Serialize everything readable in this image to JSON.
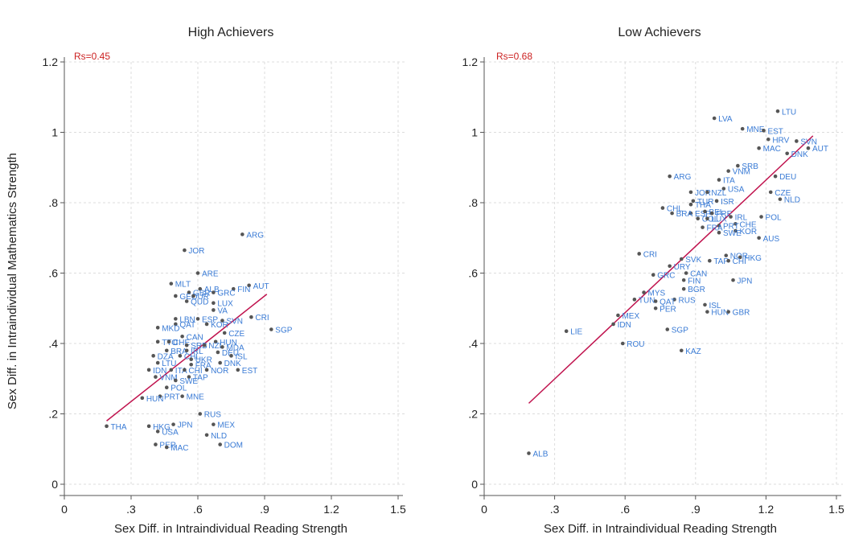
{
  "chart_data": [
    {
      "type": "scatter",
      "title": "High Achievers",
      "xlabel": "Sex Diff. in Intraindividual Reading Strength",
      "ylabel": "Sex Diff. in Intraindividual Mathematics Strength",
      "annotation": "Rs=0.45",
      "xlim": [
        0,
        1.5
      ],
      "ylim": [
        0,
        1.2
      ],
      "xticks": [
        0,
        0.3,
        0.6,
        0.9,
        1.2,
        1.5
      ],
      "xtick_labels": [
        "0",
        ".3",
        ".6",
        ".9",
        "1.2",
        "1.5"
      ],
      "yticks": [
        0,
        0.2,
        0.4,
        0.6,
        0.8,
        1.0,
        1.2
      ],
      "ytick_labels": [
        "0",
        ".2",
        ".4",
        ".6",
        ".8",
        "1",
        "1.2"
      ],
      "grid": true,
      "fit_line": {
        "x": [
          0.19,
          0.91
        ],
        "y": [
          0.18,
          0.54
        ]
      },
      "points": [
        {
          "label": "ARG",
          "x": 0.8,
          "y": 0.71
        },
        {
          "label": "JOR",
          "x": 0.54,
          "y": 0.665
        },
        {
          "label": "ARE",
          "x": 0.6,
          "y": 0.6
        },
        {
          "label": "MLT",
          "x": 0.48,
          "y": 0.57
        },
        {
          "label": "AUT",
          "x": 0.83,
          "y": 0.565
        },
        {
          "label": "ALB",
          "x": 0.61,
          "y": 0.555
        },
        {
          "label": "FIN",
          "x": 0.76,
          "y": 0.555
        },
        {
          "label": "GBR",
          "x": 0.56,
          "y": 0.545
        },
        {
          "label": "GRC",
          "x": 0.67,
          "y": 0.545
        },
        {
          "label": "GEO",
          "x": 0.5,
          "y": 0.535
        },
        {
          "label": "UR",
          "x": 0.58,
          "y": 0.535
        },
        {
          "label": "QUD",
          "x": 0.55,
          "y": 0.52
        },
        {
          "label": "LUX",
          "x": 0.67,
          "y": 0.515
        },
        {
          "label": "VA",
          "x": 0.67,
          "y": 0.495
        },
        {
          "label": "LBN",
          "x": 0.5,
          "y": 0.47
        },
        {
          "label": "ESP",
          "x": 0.6,
          "y": 0.47
        },
        {
          "label": "CRI",
          "x": 0.84,
          "y": 0.475
        },
        {
          "label": "SVN",
          "x": 0.71,
          "y": 0.465
        },
        {
          "label": "QAT",
          "x": 0.5,
          "y": 0.455
        },
        {
          "label": "KOR",
          "x": 0.64,
          "y": 0.455
        },
        {
          "label": "MKD",
          "x": 0.42,
          "y": 0.445
        },
        {
          "label": "SGP",
          "x": 0.93,
          "y": 0.44
        },
        {
          "label": "CZE",
          "x": 0.72,
          "y": 0.43
        },
        {
          "label": "CAN",
          "x": 0.53,
          "y": 0.42
        },
        {
          "label": "TTO",
          "x": 0.42,
          "y": 0.405
        },
        {
          "label": "CHE",
          "x": 0.47,
          "y": 0.405
        },
        {
          "label": "HUN",
          "x": 0.68,
          "y": 0.405
        },
        {
          "label": "SRB",
          "x": 0.55,
          "y": 0.395
        },
        {
          "label": "NZL",
          "x": 0.63,
          "y": 0.395
        },
        {
          "label": "MDA",
          "x": 0.71,
          "y": 0.39
        },
        {
          "label": "BRA",
          "x": 0.46,
          "y": 0.38
        },
        {
          "label": "IRL",
          "x": 0.55,
          "y": 0.38
        },
        {
          "label": "DEU",
          "x": 0.69,
          "y": 0.375
        },
        {
          "label": "DZA",
          "x": 0.4,
          "y": 0.365
        },
        {
          "label": "CHL",
          "x": 0.52,
          "y": 0.365
        },
        {
          "label": "ISL",
          "x": 0.75,
          "y": 0.365
        },
        {
          "label": "UKR",
          "x": 0.57,
          "y": 0.355
        },
        {
          "label": "FRA",
          "x": 0.57,
          "y": 0.34
        },
        {
          "label": "LTU",
          "x": 0.42,
          "y": 0.345
        },
        {
          "label": "DNK",
          "x": 0.7,
          "y": 0.345
        },
        {
          "label": "IDN",
          "x": 0.38,
          "y": 0.325
        },
        {
          "label": "ITA",
          "x": 0.48,
          "y": 0.325
        },
        {
          "label": "CHI",
          "x": 0.54,
          "y": 0.325
        },
        {
          "label": "NOR",
          "x": 0.64,
          "y": 0.325
        },
        {
          "label": "EST",
          "x": 0.78,
          "y": 0.325
        },
        {
          "label": "VNM",
          "x": 0.41,
          "y": 0.305
        },
        {
          "label": "TAP",
          "x": 0.56,
          "y": 0.305
        },
        {
          "label": "SWE",
          "x": 0.5,
          "y": 0.295
        },
        {
          "label": "POL",
          "x": 0.46,
          "y": 0.275
        },
        {
          "label": "PRT",
          "x": 0.43,
          "y": 0.25
        },
        {
          "label": "MNE",
          "x": 0.53,
          "y": 0.25
        },
        {
          "label": "HUN",
          "x": 0.35,
          "y": 0.245
        },
        {
          "label": "RUS",
          "x": 0.61,
          "y": 0.2
        },
        {
          "label": "THA",
          "x": 0.19,
          "y": 0.165
        },
        {
          "label": "HKG",
          "x": 0.38,
          "y": 0.165
        },
        {
          "label": "JPN",
          "x": 0.49,
          "y": 0.17
        },
        {
          "label": "MEX",
          "x": 0.67,
          "y": 0.17
        },
        {
          "label": "USA",
          "x": 0.42,
          "y": 0.15
        },
        {
          "label": "NLD",
          "x": 0.64,
          "y": 0.14
        },
        {
          "label": "PER",
          "x": 0.41,
          "y": 0.113
        },
        {
          "label": "DOM",
          "x": 0.7,
          "y": 0.113
        },
        {
          "label": "MAC",
          "x": 0.46,
          "y": 0.105
        }
      ]
    },
    {
      "type": "scatter",
      "title": "Low Achievers",
      "xlabel": "Sex Diff. in Intraindividual Reading Strength",
      "ylabel": "",
      "annotation": "Rs=0.68",
      "xlim": [
        0,
        1.5
      ],
      "ylim": [
        0,
        1.2
      ],
      "xticks": [
        0,
        0.3,
        0.6,
        0.9,
        1.2,
        1.5
      ],
      "xtick_labels": [
        "0",
        ".3",
        ".6",
        ".9",
        "1.2",
        "1.5"
      ],
      "yticks": [
        0,
        0.2,
        0.4,
        0.6,
        0.8,
        1.0,
        1.2
      ],
      "ytick_labels": [
        "0",
        ".2",
        ".4",
        ".6",
        ".8",
        "1",
        "1.2"
      ],
      "grid": true,
      "fit_line": {
        "x": [
          0.19,
          1.4
        ],
        "y": [
          0.23,
          0.99
        ]
      },
      "points": [
        {
          "label": "LTU",
          "x": 1.25,
          "y": 1.06
        },
        {
          "label": "LVA",
          "x": 0.98,
          "y": 1.04
        },
        {
          "label": "MNE",
          "x": 1.1,
          "y": 1.01
        },
        {
          "label": "EST",
          "x": 1.19,
          "y": 1.005
        },
        {
          "label": "HRV",
          "x": 1.21,
          "y": 0.98
        },
        {
          "label": "SVN",
          "x": 1.33,
          "y": 0.975
        },
        {
          "label": "MAC",
          "x": 1.17,
          "y": 0.955
        },
        {
          "label": "AUT",
          "x": 1.38,
          "y": 0.955
        },
        {
          "label": "DNK",
          "x": 1.29,
          "y": 0.94
        },
        {
          "label": "SRB",
          "x": 1.08,
          "y": 0.905
        },
        {
          "label": "VNM",
          "x": 1.04,
          "y": 0.89
        },
        {
          "label": "ARG",
          "x": 0.79,
          "y": 0.875
        },
        {
          "label": "DEU",
          "x": 1.24,
          "y": 0.875
        },
        {
          "label": "ITA",
          "x": 1.0,
          "y": 0.865
        },
        {
          "label": "USA",
          "x": 1.02,
          "y": 0.84
        },
        {
          "label": "JOR",
          "x": 0.88,
          "y": 0.83
        },
        {
          "label": "NZL",
          "x": 0.95,
          "y": 0.83
        },
        {
          "label": "CZE",
          "x": 1.22,
          "y": 0.83
        },
        {
          "label": "TUR",
          "x": 0.89,
          "y": 0.805
        },
        {
          "label": "ISR",
          "x": 0.99,
          "y": 0.805
        },
        {
          "label": "NLD",
          "x": 1.26,
          "y": 0.81
        },
        {
          "label": "THA",
          "x": 0.88,
          "y": 0.795
        },
        {
          "label": "CHL",
          "x": 0.76,
          "y": 0.785
        },
        {
          "label": "ESP",
          "x": 0.88,
          "y": 0.77
        },
        {
          "label": "BEL",
          "x": 0.94,
          "y": 0.775
        },
        {
          "label": "FRE",
          "x": 0.97,
          "y": 0.77
        },
        {
          "label": "IRL",
          "x": 1.05,
          "y": 0.76
        },
        {
          "label": "POL",
          "x": 1.18,
          "y": 0.76
        },
        {
          "label": "BRA",
          "x": 0.8,
          "y": 0.77
        },
        {
          "label": "COL",
          "x": 0.91,
          "y": 0.755
        },
        {
          "label": "LUX",
          "x": 0.95,
          "y": 0.755
        },
        {
          "label": "CHE",
          "x": 1.07,
          "y": 0.74
        },
        {
          "label": "PRT",
          "x": 1.0,
          "y": 0.735
        },
        {
          "label": "KOR",
          "x": 1.07,
          "y": 0.72
        },
        {
          "label": "SWE",
          "x": 1.0,
          "y": 0.715
        },
        {
          "label": "FRA",
          "x": 0.93,
          "y": 0.73
        },
        {
          "label": "AUS",
          "x": 1.17,
          "y": 0.7
        },
        {
          "label": "NOR",
          "x": 1.03,
          "y": 0.65
        },
        {
          "label": "HKG",
          "x": 1.09,
          "y": 0.645
        },
        {
          "label": "CRI",
          "x": 0.66,
          "y": 0.655
        },
        {
          "label": "SVK",
          "x": 0.84,
          "y": 0.64
        },
        {
          "label": "TAP",
          "x": 0.96,
          "y": 0.635
        },
        {
          "label": "CHI",
          "x": 1.04,
          "y": 0.635
        },
        {
          "label": "URY",
          "x": 0.79,
          "y": 0.62
        },
        {
          "label": "CAN",
          "x": 0.86,
          "y": 0.6
        },
        {
          "label": "GRC",
          "x": 0.72,
          "y": 0.595
        },
        {
          "label": "FIN",
          "x": 0.85,
          "y": 0.58
        },
        {
          "label": "JPN",
          "x": 1.06,
          "y": 0.58
        },
        {
          "label": "BGR",
          "x": 0.85,
          "y": 0.555
        },
        {
          "label": "MYS",
          "x": 0.68,
          "y": 0.545
        },
        {
          "label": "TUN",
          "x": 0.64,
          "y": 0.525
        },
        {
          "label": "RUS",
          "x": 0.81,
          "y": 0.525
        },
        {
          "label": "QAT",
          "x": 0.73,
          "y": 0.52
        },
        {
          "label": "ISL",
          "x": 0.94,
          "y": 0.51
        },
        {
          "label": "PER",
          "x": 0.73,
          "y": 0.5
        },
        {
          "label": "HUN",
          "x": 0.95,
          "y": 0.49
        },
        {
          "label": "GBR",
          "x": 1.04,
          "y": 0.49
        },
        {
          "label": "MEX",
          "x": 0.57,
          "y": 0.48
        },
        {
          "label": "IDN",
          "x": 0.55,
          "y": 0.455
        },
        {
          "label": "SGP",
          "x": 0.78,
          "y": 0.44
        },
        {
          "label": "LIE",
          "x": 0.35,
          "y": 0.435
        },
        {
          "label": "ROU",
          "x": 0.59,
          "y": 0.4
        },
        {
          "label": "KAZ",
          "x": 0.84,
          "y": 0.38
        },
        {
          "label": "ALB",
          "x": 0.19,
          "y": 0.088
        }
      ]
    }
  ]
}
